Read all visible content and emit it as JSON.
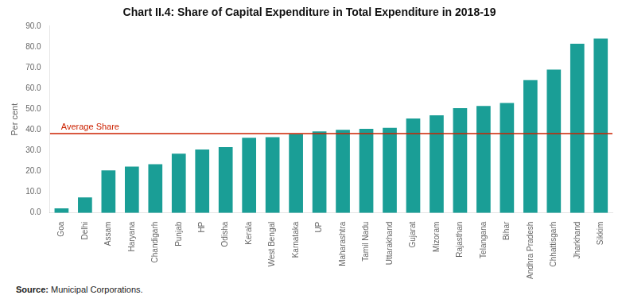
{
  "chart_data": {
    "type": "bar",
    "title": "Chart II.4: Share of Capital Expenditure in Total Expenditure in 2018-19",
    "categories": [
      "Goa",
      "Delhi",
      "Assam",
      "Haryana",
      "Chandigarh",
      "Punjab",
      "HP",
      "Odisha",
      "Kerala",
      "West Bengal",
      "Karnataka",
      "UP",
      "Maharashtra",
      "Tamil Nadu",
      "Uttarakhand",
      "Gujarat",
      "Mizoram",
      "Rajasthan",
      "Telangana",
      "Bihar",
      "Andhra Pradesh",
      "Chhattisgarh",
      "Jharkhand",
      "Sikkim"
    ],
    "values": [
      2.2,
      7.5,
      20.5,
      22.3,
      23.5,
      28.5,
      30.5,
      31.7,
      36.2,
      36.5,
      38.0,
      39.3,
      40.0,
      40.5,
      41.0,
      45.5,
      47.0,
      50.5,
      51.5,
      53.0,
      64.0,
      69.0,
      81.5,
      84.0
    ],
    "color": "#1a9e96",
    "ylabel": "Per cent",
    "ylim": [
      0,
      90
    ],
    "yticks": [
      {
        "value": 0,
        "label": "0.0"
      },
      {
        "value": 10,
        "label": "10.0"
      },
      {
        "value": 20,
        "label": "20.0"
      },
      {
        "value": 30,
        "label": "30.0"
      },
      {
        "value": 40,
        "label": "40.0"
      },
      {
        "value": 50,
        "label": "50.0"
      },
      {
        "value": 60,
        "label": "60.0"
      },
      {
        "value": 70,
        "label": "70.0"
      },
      {
        "value": 80,
        "label": "80.0"
      },
      {
        "value": 90,
        "label": "90.0"
      }
    ],
    "annotations": [
      {
        "type": "hline",
        "y": 38.2,
        "text": "Average Share",
        "color": "#cc2200"
      }
    ],
    "source": [
      "Source:",
      "Municipal Corporations."
    ],
    "grid": false
  }
}
